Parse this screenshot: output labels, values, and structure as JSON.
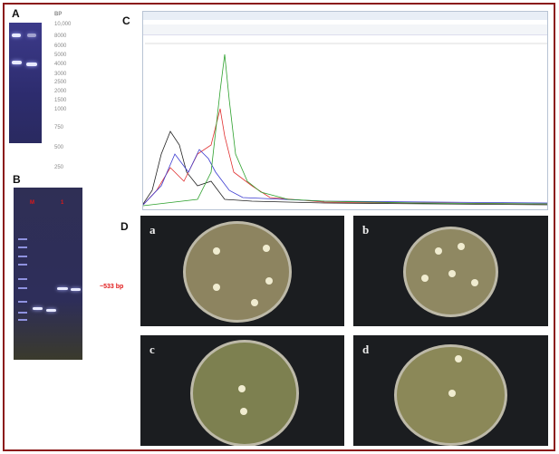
{
  "panels": {
    "A": "A",
    "B": "B",
    "C": "C",
    "D": "D"
  },
  "gel_a": {
    "unit_label": "BP",
    "ladder": [
      "10,000",
      "8000",
      "6000",
      "5000",
      "4000",
      "3000",
      "2500",
      "2000",
      "1500",
      "1000",
      "750",
      "500",
      "250"
    ]
  },
  "gel_b": {
    "lane_labels": [
      "M",
      "1"
    ],
    "band_annotation": "~533 bp",
    "annotation_color": "#e01818"
  },
  "chromatogram": {
    "trace_colors": {
      "A": "#2ca02c",
      "C": "#3a3ad0",
      "G": "#222222",
      "T": "#e03030"
    }
  },
  "plates": [
    {
      "label": "a"
    },
    {
      "label": "b"
    },
    {
      "label": "c"
    },
    {
      "label": "d"
    }
  ],
  "colors": {
    "frame": "#8b1a1a"
  }
}
